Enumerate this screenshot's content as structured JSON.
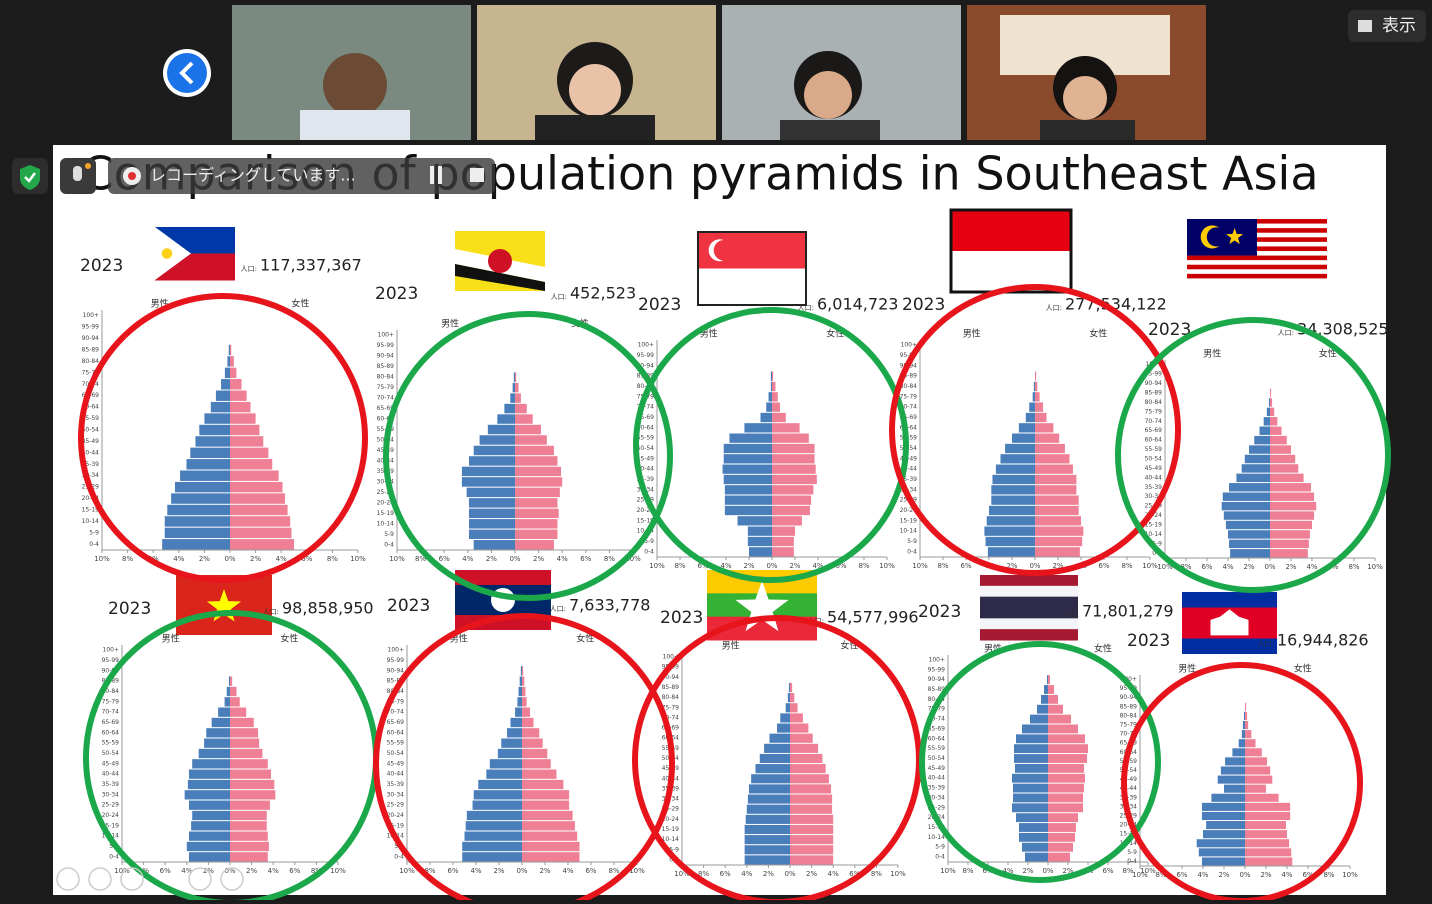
{
  "zoom": {
    "recording": "レコーディングしています...",
    "view_button": "表示"
  },
  "slide": {
    "title": "Comparison of population pyramids in Southeast Asia",
    "age_groups": [
      "0-4",
      "5-9",
      "10-14",
      "15-19",
      "20-24",
      "25-29",
      "30-34",
      "35-39",
      "40-44",
      "45-49",
      "50-54",
      "55-59",
      "60-64",
      "65-69",
      "70-74",
      "75-79",
      "80-84",
      "85-89",
      "90-94",
      "95-99",
      "100+"
    ],
    "male_label": "男性",
    "female_label": "女性",
    "population_prefix": "人口:",
    "xticks": [
      {
        "value": -10,
        "label": "10%"
      },
      {
        "value": -8,
        "label": "8%"
      },
      {
        "value": -6,
        "label": "6%"
      },
      {
        "value": -4,
        "label": "4%"
      },
      {
        "value": -2,
        "label": "2%"
      },
      {
        "value": 0,
        "label": "0%"
      },
      {
        "value": 2,
        "label": "2%"
      },
      {
        "value": 4,
        "label": "4%"
      },
      {
        "value": 6,
        "label": "6%"
      },
      {
        "value": 8,
        "label": "8%"
      },
      {
        "value": 10,
        "label": "10%"
      }
    ],
    "male_color": "#4a7ebb",
    "female_color": "#ef7f94",
    "pyramids": [
      {
        "year": "2023",
        "population": "117,337,367",
        "male": [
          5.3,
          5.1,
          5.1,
          4.9,
          4.6,
          4.3,
          3.9,
          3.4,
          3.1,
          2.7,
          2.4,
          2.0,
          1.5,
          1.1,
          0.7,
          0.4,
          0.2,
          0.1,
          0.0,
          0.0,
          0.0
        ],
        "female": [
          5.0,
          4.8,
          4.7,
          4.5,
          4.3,
          4.1,
          3.8,
          3.3,
          3.0,
          2.6,
          2.3,
          2.0,
          1.6,
          1.3,
          0.9,
          0.5,
          0.3,
          0.1,
          0.0,
          0.0,
          0.0
        ]
      },
      {
        "year": "2023",
        "population": "452,523",
        "male": [
          3.5,
          3.9,
          3.9,
          3.9,
          3.9,
          4.1,
          4.5,
          4.5,
          3.9,
          3.5,
          3.0,
          2.3,
          1.5,
          0.9,
          0.4,
          0.2,
          0.1,
          0.0,
          0.0,
          0.0,
          0.0
        ],
        "female": [
          3.3,
          3.6,
          3.6,
          3.7,
          3.6,
          3.8,
          4.0,
          3.9,
          3.6,
          3.3,
          2.7,
          2.2,
          1.5,
          1.0,
          0.5,
          0.3,
          0.1,
          0.0,
          0.0,
          0.0,
          0.0
        ]
      },
      {
        "year": "2023",
        "population": "6,014,723",
        "male": [
          2.0,
          2.1,
          2.1,
          3.0,
          4.1,
          4.1,
          4.1,
          4.2,
          4.3,
          4.2,
          4.2,
          3.7,
          2.4,
          1.0,
          0.5,
          0.3,
          0.1,
          0.1,
          0.0,
          0.0,
          0.0
        ],
        "female": [
          1.9,
          1.9,
          2.0,
          2.6,
          3.3,
          3.4,
          3.6,
          3.9,
          3.8,
          3.7,
          3.7,
          3.2,
          2.4,
          1.2,
          0.7,
          0.5,
          0.3,
          0.1,
          0.0,
          0.0,
          0.0
        ]
      },
      {
        "year": "2023",
        "population": "277,534,122",
        "male": [
          4.1,
          4.3,
          4.4,
          4.2,
          4.0,
          3.8,
          3.8,
          3.7,
          3.4,
          3.0,
          2.6,
          2.0,
          1.4,
          0.8,
          0.5,
          0.2,
          0.1,
          0.0,
          0.0,
          0.0,
          0.0
        ],
        "female": [
          3.9,
          4.1,
          4.2,
          4.0,
          3.8,
          3.8,
          3.6,
          3.6,
          3.3,
          3.0,
          2.6,
          2.1,
          1.6,
          1.0,
          0.7,
          0.4,
          0.2,
          0.1,
          0.0,
          0.0,
          0.0
        ]
      },
      {
        "year": "2023",
        "population": "34,308,525",
        "male": [
          3.8,
          3.9,
          4.0,
          4.2,
          4.4,
          4.6,
          4.5,
          3.9,
          3.2,
          2.7,
          2.4,
          2.0,
          1.5,
          1.0,
          0.6,
          0.3,
          0.1,
          0.0,
          0.0,
          0.0,
          0.0
        ],
        "female": [
          3.6,
          3.7,
          3.8,
          4.0,
          4.2,
          4.4,
          4.2,
          3.9,
          3.2,
          2.7,
          2.4,
          2.0,
          1.6,
          1.1,
          0.7,
          0.4,
          0.2,
          0.1,
          0.0,
          0.0,
          0.0
        ]
      },
      {
        "year": "2023",
        "population": "98,858,950",
        "male": [
          3.8,
          4.0,
          3.8,
          3.6,
          3.5,
          3.8,
          4.2,
          3.9,
          3.8,
          3.5,
          2.9,
          2.4,
          2.2,
          1.7,
          1.1,
          0.5,
          0.3,
          0.1,
          0.0,
          0.0,
          0.0
        ],
        "female": [
          3.5,
          3.6,
          3.5,
          3.4,
          3.4,
          3.7,
          4.2,
          4.1,
          3.8,
          3.5,
          3.0,
          2.7,
          2.6,
          2.2,
          1.5,
          0.9,
          0.6,
          0.2,
          0.0,
          0.0,
          0.0
        ]
      },
      {
        "year": "2023",
        "population": "7,633,778",
        "male": [
          5.2,
          5.2,
          5.0,
          4.9,
          4.8,
          4.3,
          4.2,
          3.8,
          3.1,
          2.8,
          2.1,
          1.8,
          1.3,
          1.0,
          0.6,
          0.4,
          0.3,
          0.2,
          0.1,
          0.0,
          0.0
        ],
        "female": [
          5.0,
          5.0,
          4.8,
          4.6,
          4.4,
          4.1,
          4.1,
          3.6,
          3.0,
          2.5,
          2.2,
          1.8,
          1.5,
          1.0,
          0.7,
          0.4,
          0.3,
          0.2,
          0.1,
          0.0,
          0.0
        ]
      },
      {
        "year": "2023",
        "population": "54,577,996",
        "male": [
          4.2,
          4.2,
          4.2,
          4.2,
          4.1,
          4.0,
          3.9,
          3.8,
          3.6,
          3.2,
          2.8,
          2.4,
          1.9,
          1.2,
          0.9,
          0.4,
          0.2,
          0.1,
          0.0,
          0.0,
          0.0
        ],
        "female": [
          4.0,
          4.0,
          4.0,
          4.0,
          4.0,
          3.9,
          3.9,
          3.8,
          3.6,
          3.3,
          3.0,
          2.6,
          2.1,
          1.7,
          1.2,
          0.7,
          0.4,
          0.2,
          0.0,
          0.0,
          0.0
        ]
      },
      {
        "year": "2023",
        "population": "71,801,279",
        "male": [
          2.3,
          2.6,
          2.9,
          2.9,
          3.2,
          3.6,
          3.5,
          3.5,
          3.6,
          3.3,
          3.4,
          3.4,
          3.2,
          2.6,
          1.8,
          1.1,
          0.7,
          0.4,
          0.1,
          0.0,
          0.0
        ],
        "female": [
          2.2,
          2.5,
          2.7,
          2.8,
          3.0,
          3.5,
          3.5,
          3.6,
          3.7,
          3.6,
          3.9,
          4.0,
          3.7,
          3.0,
          2.3,
          1.5,
          1.0,
          0.6,
          0.2,
          0.0,
          0.0
        ]
      },
      {
        "year": "2023",
        "population": "16,944,826",
        "male": [
          4.1,
          4.4,
          4.6,
          4.0,
          3.7,
          4.1,
          4.1,
          3.2,
          2.0,
          2.6,
          2.3,
          1.9,
          1.2,
          0.6,
          0.3,
          0.2,
          0.1,
          0.0,
          0.0,
          0.0,
          0.0
        ],
        "female": [
          4.5,
          4.4,
          4.2,
          4.0,
          3.9,
          4.3,
          4.3,
          3.2,
          2.0,
          2.6,
          2.4,
          2.1,
          1.6,
          1.0,
          0.6,
          0.3,
          0.2,
          0.1,
          0.0,
          0.0,
          0.0
        ]
      }
    ]
  }
}
